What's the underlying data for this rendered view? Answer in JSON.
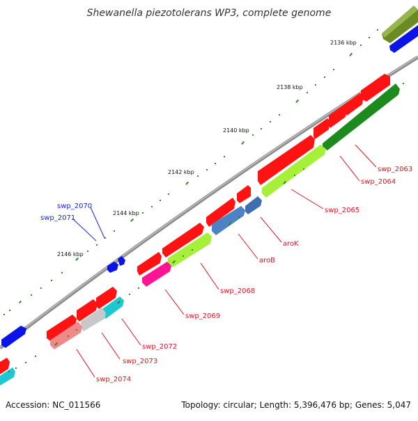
{
  "title": "Shewanella piezotolerans WP3, complete genome",
  "footer": {
    "accession": "Accession: NC_011566",
    "summary": "Topology: circular; Length: 5,396,476 bp; Genes: 5,047"
  },
  "colors": {
    "backbone": "#8a8a8a",
    "forward_gene": "#ff1414",
    "reverse_gene": "#0a1eea",
    "label_forward": "#e0141e",
    "label_reverse": "#1428d2",
    "tick_major": "#1e7a1e",
    "tick_minor": "#2a9a2a"
  },
  "kbp_ticks": [
    "2136 kbp",
    "2138 kbp",
    "2140 kbp",
    "2142 kbp",
    "2144 kbp",
    "2146 kbp"
  ],
  "gene_labels": {
    "swp_2063": "swp_2063",
    "swp_2064": "swp_2064",
    "swp_2065": "swp_2065",
    "aroK": "aroK",
    "aroB": "aroB",
    "swp_2068": "swp_2068",
    "swp_2069": "swp_2069",
    "swp_2070": "swp_2070",
    "swp_2071": "swp_2071",
    "swp_2072": "swp_2072",
    "swp_2073": "swp_2073",
    "swp_2074": "swp_2074"
  }
}
